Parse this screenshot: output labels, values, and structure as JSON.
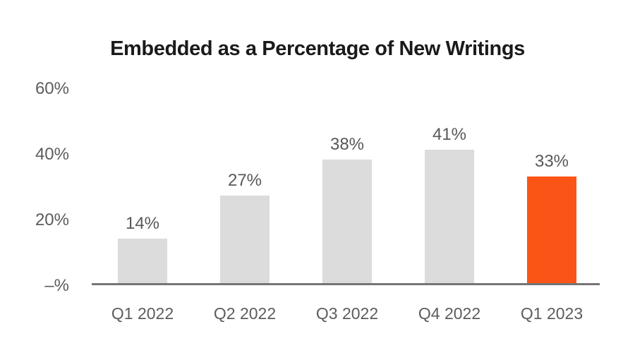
{
  "chart_data": {
    "type": "bar",
    "title": "Embedded as a Percentage of New Writings",
    "categories": [
      "Q1 2022",
      "Q2 2022",
      "Q3 2022",
      "Q4 2022",
      "Q1 2023"
    ],
    "values": [
      14,
      27,
      38,
      41,
      33
    ],
    "value_labels": [
      "14%",
      "27%",
      "38%",
      "41%",
      "33%"
    ],
    "highlight_index": 4,
    "y_ticks": [
      {
        "label": "60%",
        "value": 60
      },
      {
        "label": "40%",
        "value": 40
      },
      {
        "label": "20%",
        "value": 20
      },
      {
        "label": "–%",
        "value": 0
      }
    ],
    "ylim": [
      0,
      64
    ],
    "grid": false,
    "legend": "none",
    "colors": {
      "bar_default": "#dcdcdc",
      "bar_highlight": "#fa5516",
      "axis_line": "#757575",
      "tick_text": "#5c5c5c",
      "value_text": "#585858",
      "title_text": "#1a1a1a",
      "background": "#ffffff"
    }
  }
}
